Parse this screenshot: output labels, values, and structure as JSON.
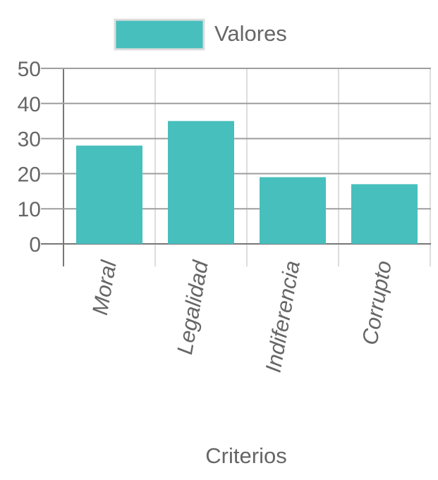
{
  "colors": {
    "bar": "#47BFBD",
    "grid_h": "#9e9e9e",
    "grid_v": "#dddddd",
    "axis": "#777777",
    "text": "#666666"
  },
  "chart_data": {
    "type": "bar",
    "categories": [
      "Moral",
      "Legalidad",
      "Indiferencia",
      "Corrupto"
    ],
    "series": [
      {
        "name": "Valores",
        "values": [
          28,
          35,
          19,
          17
        ]
      }
    ],
    "xlabel": "Criterios",
    "ylabel": "",
    "ylim": [
      0,
      50
    ],
    "yticks": [
      0,
      10,
      20,
      30,
      40,
      50
    ],
    "grid": true,
    "legend": "top-center"
  }
}
